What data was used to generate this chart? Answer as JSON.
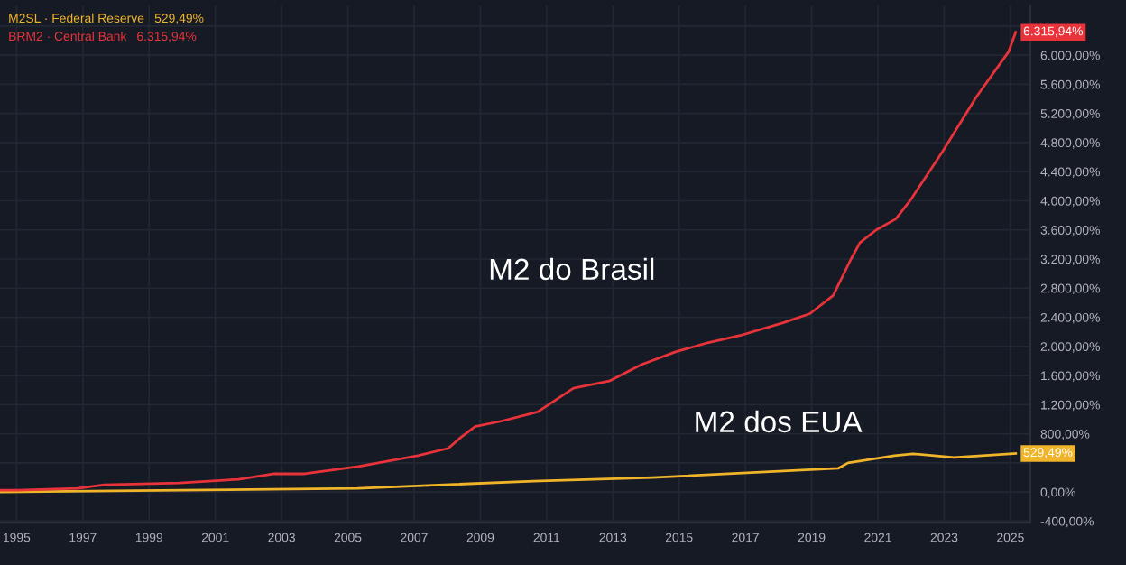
{
  "chart_data": {
    "type": "line",
    "legend": "top left",
    "grid": true,
    "marker": "none",
    "line_style": "solid",
    "xlim": [
      1994.5,
      2025.6
    ],
    "ylim": [
      -420,
      6680
    ],
    "xticks": [
      1995,
      1997,
      1999,
      2001,
      2003,
      2005,
      2007,
      2009,
      2011,
      2013,
      2015,
      2017,
      2019,
      2021,
      2023,
      2025
    ],
    "yticks": [
      {
        "value": -400,
        "label": "-400,00%"
      },
      {
        "value": 0,
        "label": "0,00%"
      },
      {
        "value": 400,
        "label": null
      },
      {
        "value": 800,
        "label": "800,00%"
      },
      {
        "value": 1200,
        "label": "1.200,00%"
      },
      {
        "value": 1600,
        "label": "1.600,00%"
      },
      {
        "value": 2000,
        "label": "2.000,00%"
      },
      {
        "value": 2400,
        "label": "2.400,00%"
      },
      {
        "value": 2800,
        "label": "2.800,00%"
      },
      {
        "value": 3200,
        "label": "3.200,00%"
      },
      {
        "value": 3600,
        "label": "3.600,00%"
      },
      {
        "value": 4000,
        "label": "4.000,00%"
      },
      {
        "value": 4400,
        "label": "4.400,00%"
      },
      {
        "value": 4800,
        "label": "4.800,00%"
      },
      {
        "value": 5200,
        "label": "5.200,00%"
      },
      {
        "value": 5600,
        "label": "5.600,00%"
      },
      {
        "value": 6000,
        "label": "6.000,00%"
      },
      {
        "value": 6400,
        "label": null
      }
    ],
    "series": [
      {
        "name": "M2SL · Federal Reserve",
        "color": "#f0b429",
        "x": [
          1994.5,
          2000.0,
          2005.3,
          2010.6,
          2014.2,
          2019.8,
          2020.1,
          2021.5,
          2022.05,
          2023.3,
          2025.16
        ],
        "values": [
          0,
          25,
          50,
          150,
          200,
          325,
          400,
          500,
          525,
          475,
          529.49
        ],
        "value_labels": [
          null,
          null,
          null,
          null,
          null,
          null,
          null,
          null,
          null,
          null,
          "529,49%"
        ]
      },
      {
        "name": "BRM2 · Central Bank",
        "color": "#e8333a",
        "x": [
          1994.51,
          1995.05,
          1996.84,
          1997.65,
          1999.92,
          2001.7,
          2002.78,
          2003.7,
          2005.32,
          2007.11,
          2008.03,
          2008.41,
          2008.84,
          2009.65,
          2010.73,
          2011.81,
          2012.89,
          2013.86,
          2014.89,
          2015.86,
          2016.84,
          2018.14,
          2018.95,
          2019.65,
          2020.19,
          2020.46,
          2020.95,
          2021.54,
          2021.97,
          2022.95,
          2023.97,
          2024.95,
          2025.16
        ],
        "values": [
          25,
          25,
          50,
          100,
          125,
          175,
          250,
          250,
          350,
          500,
          600,
          750,
          900,
          975,
          1100,
          1425,
          1525,
          1750,
          1925,
          2050,
          2150,
          2325,
          2450,
          2700,
          3200,
          3425,
          3600,
          3750,
          4000,
          4675,
          5425,
          6050,
          6315.94
        ],
        "value_labels": [
          null,
          null,
          null,
          null,
          null,
          null,
          null,
          null,
          null,
          null,
          null,
          null,
          null,
          null,
          null,
          null,
          null,
          null,
          null,
          null,
          null,
          null,
          null,
          null,
          null,
          null,
          null,
          null,
          null,
          null,
          null,
          null,
          "6.315,94%"
        ]
      }
    ],
    "annotations": [
      "M2 do Brasil",
      "M2 dos EUA"
    ]
  }
}
